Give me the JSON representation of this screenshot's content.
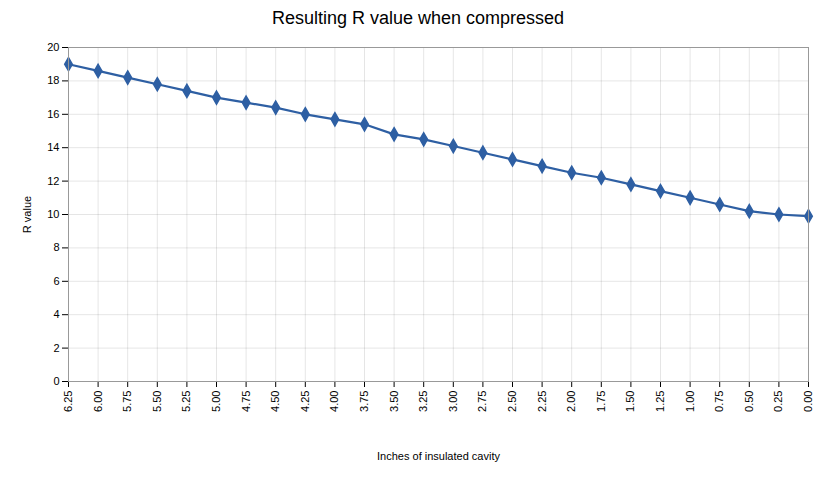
{
  "chart_data": {
    "type": "line",
    "title": "Resulting R value when compressed",
    "xlabel": "Inches of insulated cavity",
    "ylabel": "R value",
    "x": [
      6.25,
      6.0,
      5.75,
      5.5,
      5.25,
      5.0,
      4.75,
      4.5,
      4.25,
      4.0,
      3.75,
      3.5,
      3.25,
      3.0,
      2.75,
      2.5,
      2.25,
      2.0,
      1.75,
      1.5,
      1.25,
      1.0,
      0.75,
      0.5,
      0.25,
      0.0
    ],
    "values": [
      19.0,
      18.6,
      18.2,
      17.8,
      17.4,
      17.0,
      16.7,
      16.4,
      16.0,
      15.7,
      15.4,
      14.8,
      14.5,
      14.1,
      13.7,
      13.3,
      12.9,
      12.5,
      12.2,
      11.8,
      11.4,
      11.0,
      10.6,
      10.2,
      10.0,
      9.9
    ],
    "color": "#2E5FA3",
    "marker": "diamond",
    "grid": true,
    "xlim": [
      6.25,
      0.0
    ],
    "xticks": [
      6.25,
      {
        "value": 6.0,
        "label": "6.00"
      },
      5.75,
      {
        "value": 5.5,
        "label": "5.50"
      },
      5.25,
      {
        "value": 5.0,
        "label": "5.00"
      },
      4.75,
      {
        "value": 4.5,
        "label": "4.50"
      },
      4.25,
      {
        "value": 4.0,
        "label": "4.00"
      },
      3.75,
      {
        "value": 3.5,
        "label": "3.50"
      },
      3.25,
      {
        "value": 3.0,
        "label": "3.00"
      },
      2.75,
      {
        "value": 2.5,
        "label": "2.50"
      },
      2.25,
      {
        "value": 2.0,
        "label": "2.00"
      },
      1.75,
      {
        "value": 1.5,
        "label": "1.50"
      },
      1.25,
      {
        "value": 1.0,
        "label": "1.00"
      },
      0.75,
      {
        "value": 0.5,
        "label": "0.50"
      },
      0.25,
      {
        "value": 0.0,
        "label": "0.00"
      }
    ],
    "ylim": [
      0,
      20
    ],
    "yticks": [
      0,
      2,
      4,
      6,
      8,
      10,
      12,
      14,
      16,
      18,
      20
    ]
  }
}
